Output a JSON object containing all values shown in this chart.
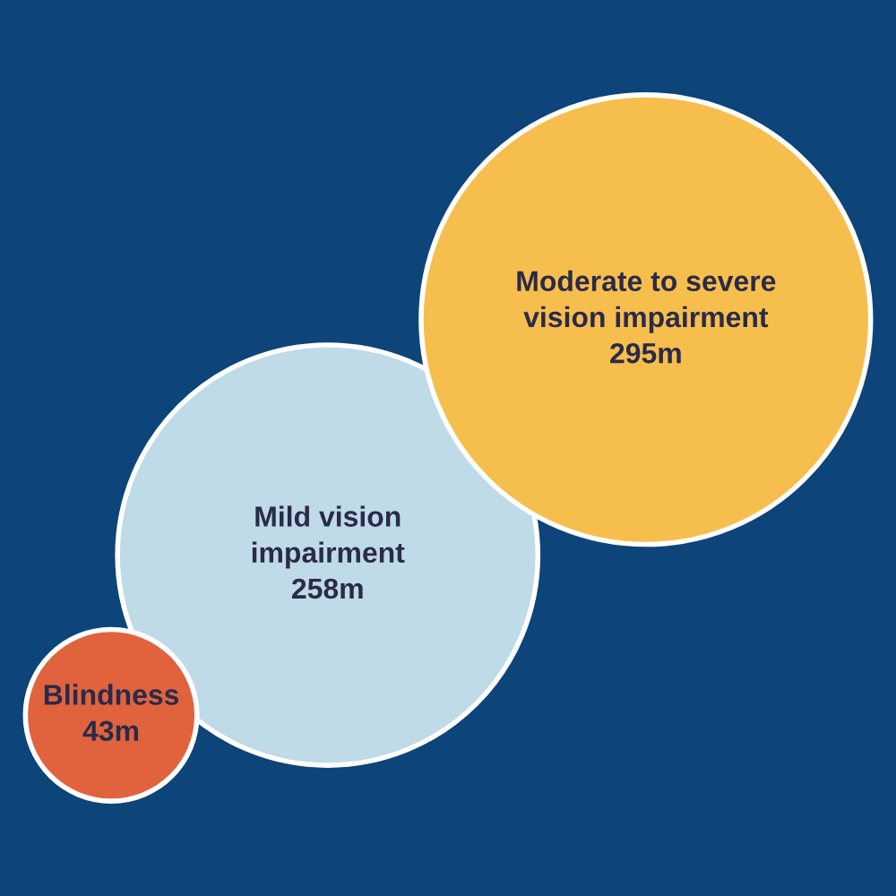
{
  "chart_data": {
    "type": "other",
    "categories": [
      "Blindness",
      "Mild vision\nimpairment",
      "Moderate to severe\nvision impairment"
    ],
    "values": [
      43,
      258,
      295
    ],
    "value_labels": [
      "43m",
      "258m",
      "295m"
    ],
    "colors": [
      "#e0633e",
      "#bedbe7",
      "#f6be4c"
    ]
  }
}
